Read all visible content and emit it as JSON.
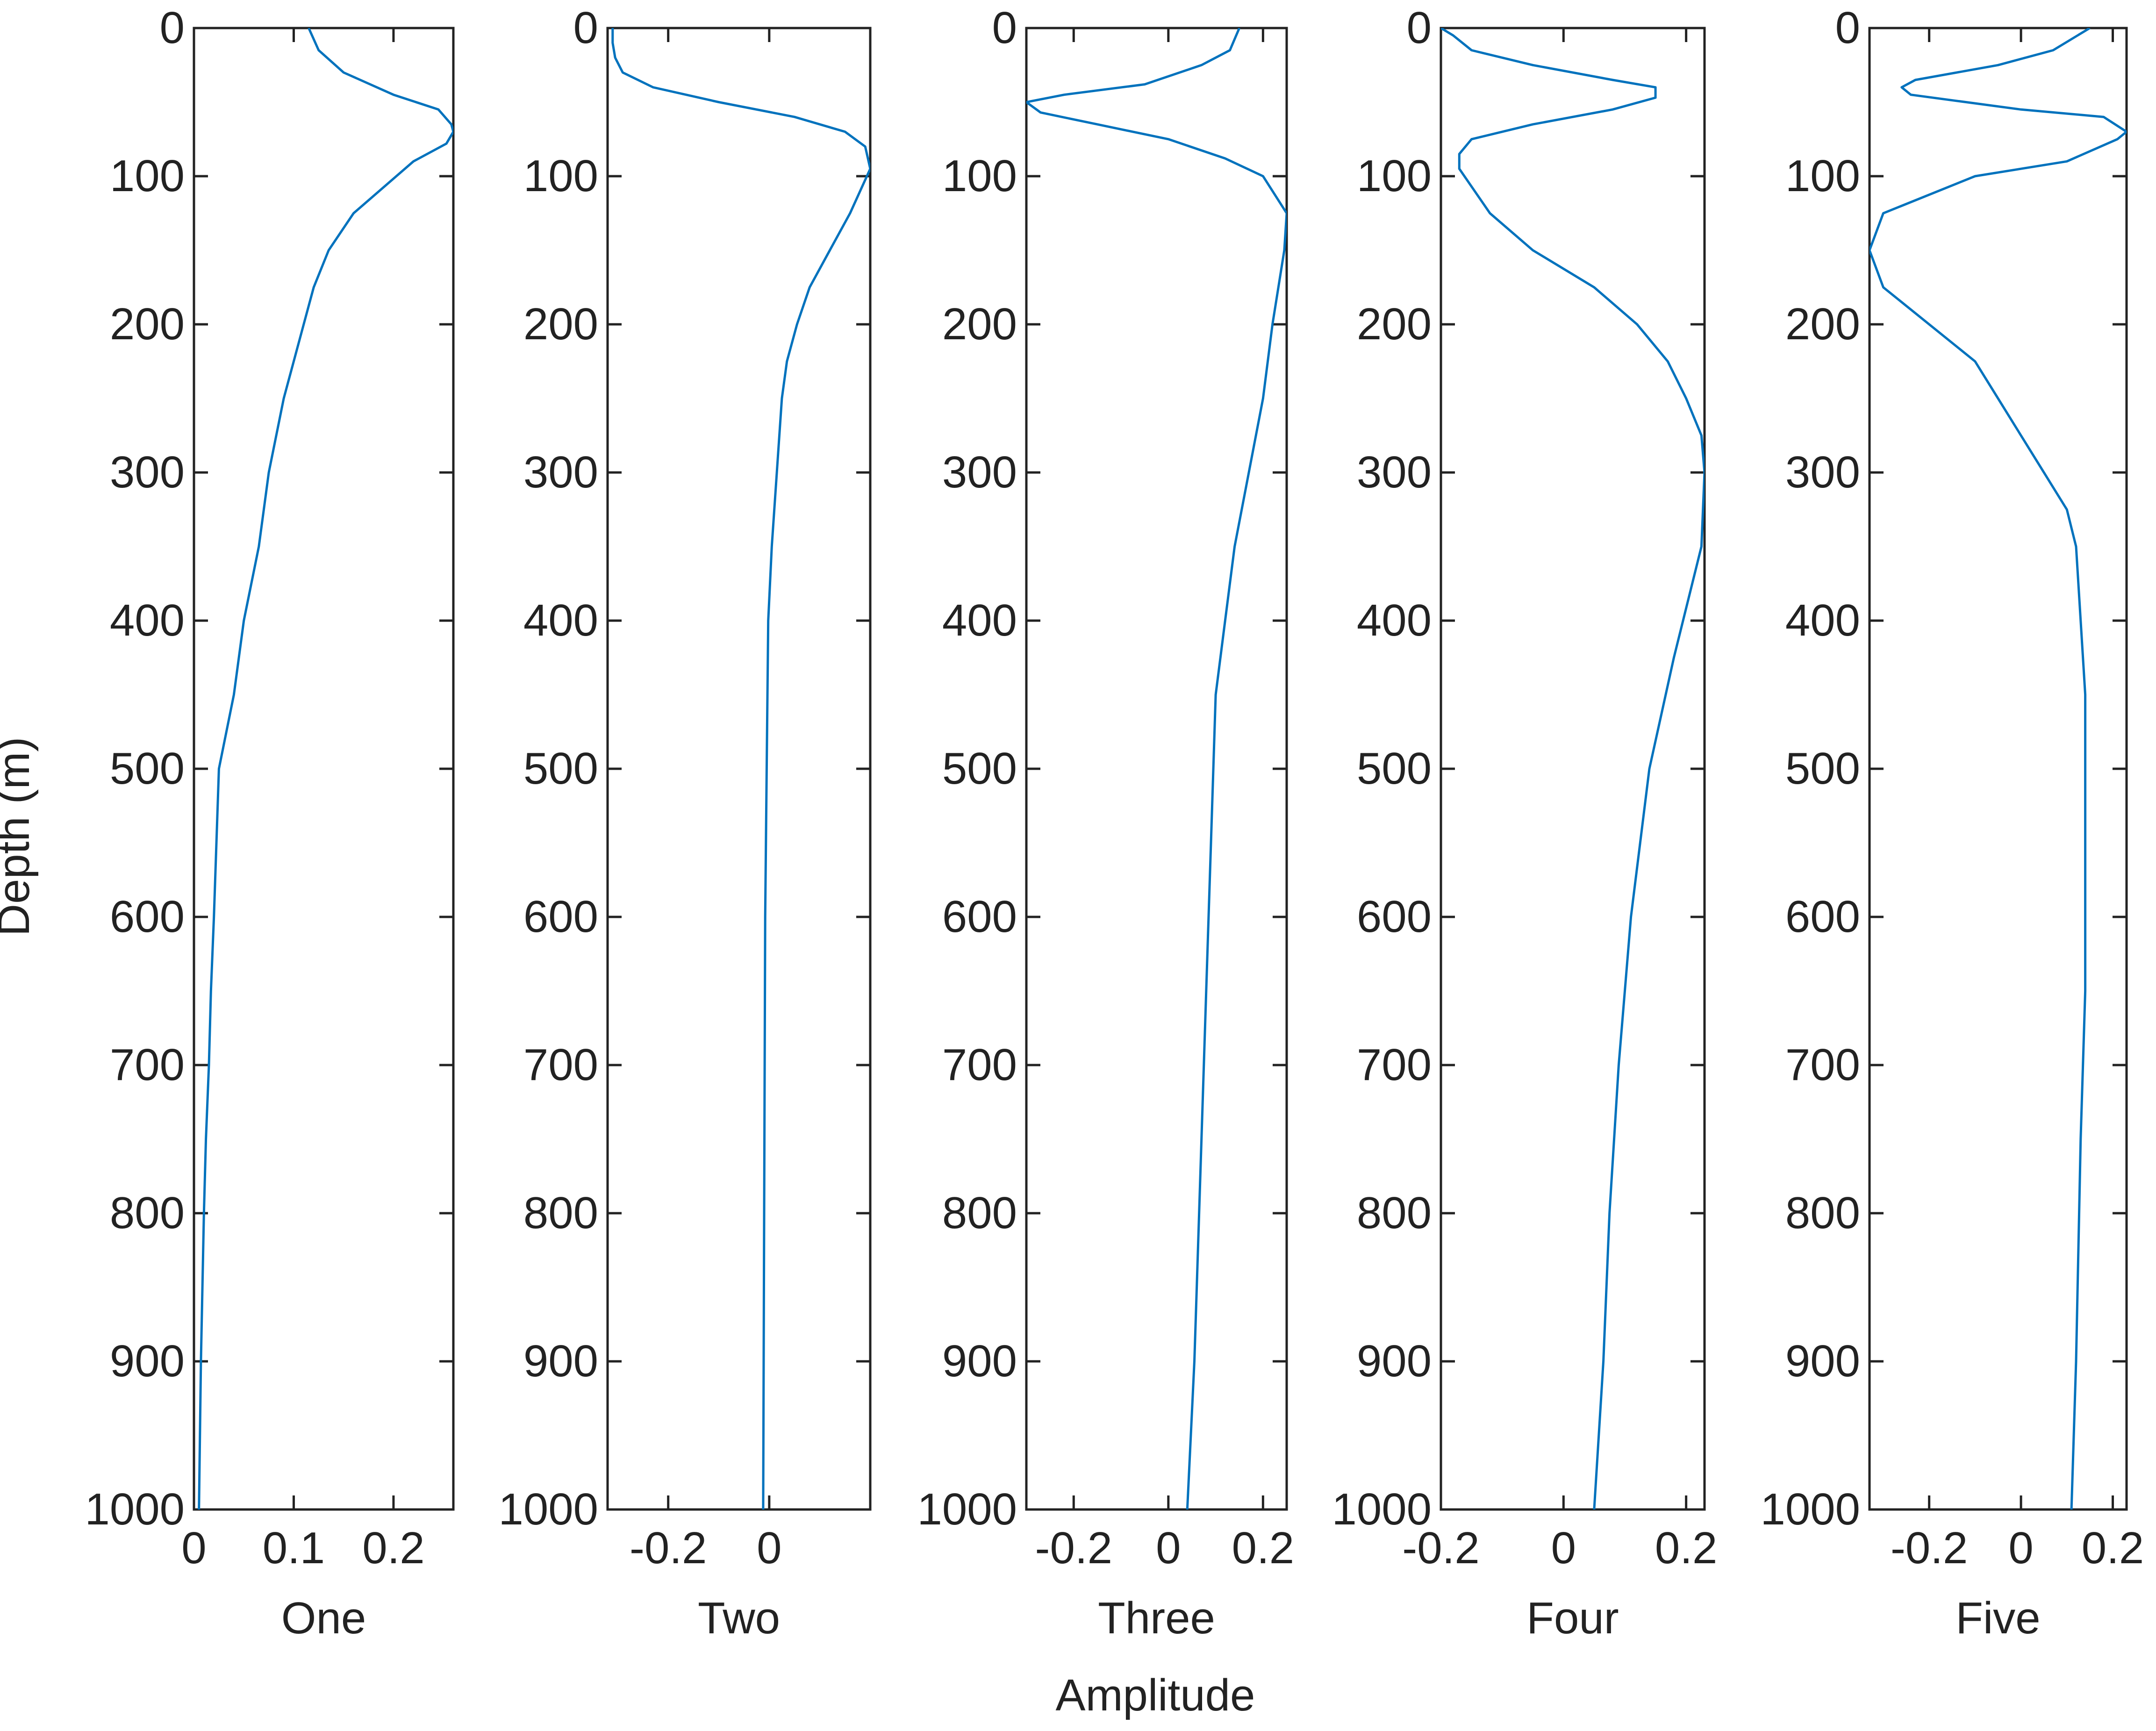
{
  "chart_data": {
    "type": "line",
    "ylabel": "Depth (m)",
    "xlabel": "Amplitude",
    "y_reversed": true,
    "ylim": [
      0,
      1000
    ],
    "yticks": [
      0,
      100,
      200,
      300,
      400,
      500,
      600,
      700,
      800,
      900,
      1000
    ],
    "ytick_labels": [
      "0",
      "100",
      "200",
      "300",
      "400",
      "500",
      "600",
      "700",
      "800",
      "900",
      "1000"
    ],
    "line_color": "#0072BD",
    "panels": [
      {
        "label": "One",
        "xlim": [
          0,
          0.26
        ],
        "xticks": [
          0,
          0.1,
          0.2
        ],
        "xtick_labels": [
          "0",
          "0.1",
          "0.2"
        ],
        "x": [
          0.115,
          0.125,
          0.15,
          0.2,
          0.245,
          0.258,
          0.26,
          0.253,
          0.22,
          0.16,
          0.135,
          0.12,
          0.11,
          0.09,
          0.075,
          0.065,
          0.05,
          0.04,
          0.025,
          0.02,
          0.017,
          0.015,
          0.012,
          0.01,
          0.007,
          0.005
        ],
        "y": [
          0,
          15,
          30,
          45,
          55,
          65,
          70,
          78,
          90,
          125,
          150,
          175,
          200,
          250,
          300,
          350,
          400,
          450,
          500,
          600,
          650,
          700,
          750,
          800,
          900,
          1000
        ]
      },
      {
        "label": "Two",
        "xlim": [
          -0.32,
          0.2
        ],
        "xticks": [
          -0.2,
          0
        ],
        "xtick_labels": [
          "-0.2",
          "0"
        ],
        "x": [
          -0.31,
          -0.31,
          -0.305,
          -0.29,
          -0.23,
          -0.1,
          0.05,
          0.15,
          0.19,
          0.2,
          0.16,
          0.12,
          0.08,
          0.055,
          0.035,
          0.025,
          0.015,
          0.005,
          -0.002,
          -0.005,
          -0.008,
          -0.01,
          -0.012
        ],
        "y": [
          0,
          10,
          20,
          30,
          40,
          50,
          60,
          70,
          80,
          95,
          125,
          150,
          175,
          200,
          225,
          250,
          300,
          350,
          400,
          500,
          600,
          800,
          1000
        ]
      },
      {
        "label": "Three",
        "xlim": [
          -0.3,
          0.25
        ],
        "xticks": [
          -0.2,
          0,
          0.2
        ],
        "xtick_labels": [
          "-0.2",
          "0",
          "0.2"
        ],
        "x": [
          0.15,
          0.13,
          0.07,
          -0.05,
          -0.22,
          -0.3,
          -0.27,
          -0.15,
          0.0,
          0.12,
          0.2,
          0.25,
          0.245,
          0.22,
          0.2,
          0.17,
          0.14,
          0.12,
          0.1,
          0.09,
          0.08,
          0.07,
          0.06,
          0.055,
          0.04
        ],
        "y": [
          0,
          15,
          25,
          38,
          45,
          50,
          57,
          65,
          75,
          88,
          100,
          125,
          150,
          200,
          250,
          300,
          350,
          400,
          450,
          550,
          650,
          750,
          850,
          900,
          1000
        ]
      },
      {
        "label": "Four",
        "xlim": [
          -0.2,
          0.23
        ],
        "xticks": [
          -0.2,
          0,
          0.2
        ],
        "xtick_labels": [
          "-0.2",
          "0",
          "0.2"
        ],
        "x": [
          -0.2,
          -0.18,
          -0.15,
          -0.05,
          0.08,
          0.15,
          0.15,
          0.08,
          -0.05,
          -0.15,
          -0.17,
          -0.17,
          -0.12,
          -0.05,
          0.05,
          0.12,
          0.17,
          0.2,
          0.225,
          0.23,
          0.225,
          0.18,
          0.14,
          0.11,
          0.09,
          0.075,
          0.065,
          0.05
        ],
        "y": [
          0,
          5,
          15,
          25,
          35,
          40,
          47,
          55,
          65,
          75,
          85,
          95,
          125,
          150,
          175,
          200,
          225,
          250,
          275,
          300,
          350,
          425,
          500,
          600,
          700,
          800,
          900,
          1000
        ]
      },
      {
        "label": "Five",
        "xlim": [
          -0.33,
          0.23
        ],
        "xticks": [
          -0.2,
          0,
          0.2
        ],
        "xtick_labels": [
          "-0.2",
          "0",
          "0.2"
        ],
        "x": [
          0.15,
          0.07,
          -0.05,
          -0.23,
          -0.26,
          -0.24,
          0.0,
          0.18,
          0.23,
          0.21,
          0.1,
          -0.1,
          -0.3,
          -0.33,
          -0.3,
          -0.1,
          -0.05,
          0.0,
          0.05,
          0.1,
          0.12,
          0.13,
          0.14,
          0.14,
          0.14,
          0.13,
          0.12,
          0.11
        ],
        "y": [
          0,
          15,
          25,
          35,
          40,
          45,
          55,
          60,
          70,
          75,
          90,
          100,
          125,
          150,
          175,
          225,
          250,
          275,
          300,
          325,
          350,
          400,
          450,
          500,
          650,
          750,
          900,
          1000
        ]
      }
    ]
  }
}
